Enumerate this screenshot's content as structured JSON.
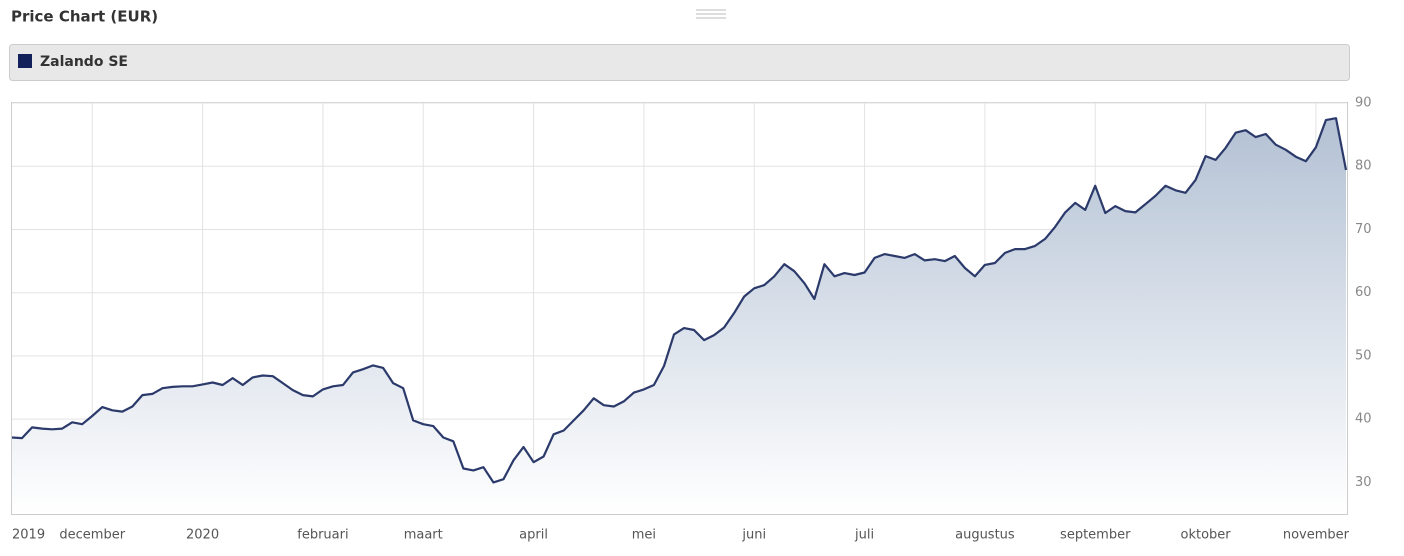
{
  "chart_data": {
    "type": "area",
    "title": "Price Chart (EUR)",
    "series": [
      {
        "name": "Zalando SE",
        "color": "#2b3a6b",
        "legend_color": "#13215a",
        "fill_color": "#b3c1d4",
        "values": [
          37.1,
          37.0,
          38.7,
          38.5,
          38.4,
          38.5,
          39.5,
          39.2,
          40.5,
          41.9,
          41.4,
          41.2,
          42.0,
          43.8,
          44.0,
          44.9,
          45.1,
          45.2,
          45.2,
          45.5,
          45.8,
          45.4,
          46.5,
          45.4,
          46.6,
          46.9,
          46.8,
          45.7,
          44.6,
          43.8,
          43.6,
          44.7,
          45.2,
          45.4,
          47.4,
          47.9,
          48.5,
          48.1,
          45.7,
          44.9,
          39.8,
          39.2,
          38.9,
          37.1,
          36.5,
          32.2,
          31.9,
          32.4,
          30.0,
          30.5,
          33.5,
          35.6,
          33.2,
          34.1,
          37.6,
          38.2,
          39.8,
          41.4,
          43.3,
          42.2,
          42.0,
          42.8,
          44.2,
          44.7,
          45.4,
          48.4,
          53.4,
          54.4,
          54.1,
          52.5,
          53.3,
          54.5,
          56.8,
          59.4,
          60.7,
          61.2,
          62.6,
          64.5,
          63.4,
          61.5,
          59.0,
          64.5,
          62.6,
          63.1,
          62.8,
          63.2,
          65.5,
          66.1,
          65.8,
          65.5,
          66.1,
          65.1,
          65.3,
          65.0,
          65.8,
          63.9,
          62.6,
          64.4,
          64.7,
          66.3,
          66.9,
          66.9,
          67.4,
          68.5,
          70.4,
          72.7,
          74.2,
          73.1,
          76.9,
          72.6,
          73.7,
          72.9,
          72.7,
          74.0,
          75.3,
          76.9,
          76.2,
          75.8,
          77.8,
          81.6,
          81.0,
          82.9,
          85.3,
          85.7,
          84.6,
          85.1,
          83.4,
          82.6,
          81.5,
          80.8,
          83.0,
          87.3,
          87.6,
          79.4
        ]
      }
    ],
    "categories": [
      "2019",
      null,
      null,
      null,
      null,
      null,
      null,
      null,
      "december",
      null,
      null,
      null,
      null,
      null,
      null,
      null,
      null,
      null,
      null,
      "2020",
      null,
      null,
      null,
      null,
      null,
      null,
      null,
      null,
      null,
      null,
      null,
      "februari",
      null,
      null,
      null,
      null,
      null,
      null,
      null,
      null,
      null,
      "maart",
      null,
      null,
      null,
      null,
      null,
      null,
      null,
      null,
      null,
      null,
      "april",
      null,
      null,
      null,
      null,
      null,
      null,
      null,
      null,
      null,
      null,
      "mei",
      null,
      null,
      null,
      null,
      null,
      null,
      null,
      null,
      null,
      null,
      "juni",
      null,
      null,
      null,
      null,
      null,
      null,
      null,
      null,
      null,
      null,
      "juli",
      null,
      null,
      null,
      null,
      null,
      null,
      null,
      null,
      null,
      null,
      null,
      "augustus",
      null,
      null,
      null,
      null,
      null,
      null,
      null,
      null,
      null,
      null,
      "september",
      null,
      null,
      null,
      null,
      null,
      null,
      null,
      null,
      null,
      null,
      "oktober",
      null,
      null,
      null,
      null,
      null,
      null,
      null,
      null,
      null,
      null,
      "november",
      null,
      null,
      null
    ],
    "ylim": [
      25,
      90
    ],
    "yticks": [
      30,
      40,
      50,
      60,
      70,
      80,
      90
    ],
    "grid": true,
    "y_axis_side": "right"
  }
}
